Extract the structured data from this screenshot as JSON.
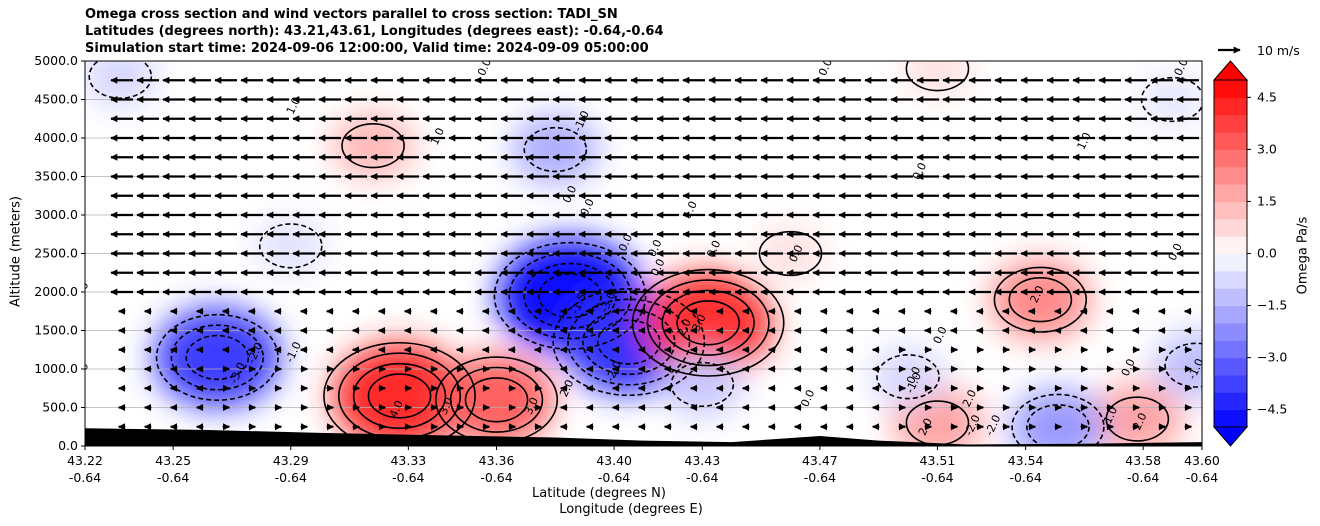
{
  "title_lines": [
    "Omega cross section and wind vectors parallel to cross section: TADI_SN",
    "Latitudes (degrees north): 43.21,43.61, Longitudes (degrees east): -0.64,-0.64",
    "Simulation start time: 2024-09-06 12:00:00, Valid time: 2024-09-09 05:00:00"
  ],
  "chart_data": {
    "type": "heatmap",
    "title": "Omega cross section and wind vectors parallel to cross section: TADI_SN",
    "ylabel": "Altitude (meters)",
    "xlabel_lines": [
      "Latitude (degrees N)",
      "Longitude (degrees E)"
    ],
    "ylim": [
      0,
      5000
    ],
    "y_ticks": [
      0,
      500,
      1000,
      1500,
      2000,
      2500,
      3000,
      3500,
      4000,
      4500,
      5000
    ],
    "y_tick_labels": [
      "0.0",
      "500.0",
      "1000.0",
      "1500.0",
      "2000.0",
      "2500.0",
      "3000.0",
      "3500.0",
      "4000.0",
      "4500.0",
      "5000.0"
    ],
    "x_ticks": [
      {
        "lat": "43.22",
        "lon": "-0.64"
      },
      {
        "lat": "43.25",
        "lon": "-0.64"
      },
      {
        "lat": "43.29",
        "lon": "-0.64"
      },
      {
        "lat": "43.33",
        "lon": "-0.64"
      },
      {
        "lat": "43.36",
        "lon": "-0.64"
      },
      {
        "lat": "43.40",
        "lon": "-0.64"
      },
      {
        "lat": "43.43",
        "lon": "-0.64"
      },
      {
        "lat": "43.47",
        "lon": "-0.64"
      },
      {
        "lat": "43.51",
        "lon": "-0.64"
      },
      {
        "lat": "43.54",
        "lon": "-0.64"
      },
      {
        "lat": "43.58",
        "lon": "-0.64"
      },
      {
        "lat": "43.60",
        "lon": "-0.64"
      }
    ],
    "x_range": [
      43.22,
      43.6
    ],
    "grid": "horizontal",
    "colormap": "bwr",
    "colorbar": {
      "label": "Omega Pa/s",
      "range": [
        -5,
        5
      ],
      "extend": "both",
      "ticks": [
        4.5,
        3.0,
        1.5,
        0.0,
        -1.5,
        -3.0,
        -4.5
      ],
      "tick_labels": [
        "4.5",
        "3.0",
        "1.5",
        "0.0",
        "−1.5",
        "−3.0",
        "−4.5"
      ]
    },
    "omega_blobs": [
      {
        "lat": 43.265,
        "alt": 1150,
        "value": -3.8
      },
      {
        "lat": 43.327,
        "alt": 650,
        "value": 4.2
      },
      {
        "lat": 43.36,
        "alt": 600,
        "value": 3.1
      },
      {
        "lat": 43.385,
        "alt": 1950,
        "value": -4.8
      },
      {
        "lat": 43.405,
        "alt": 1350,
        "value": -4.0
      },
      {
        "lat": 43.432,
        "alt": 1600,
        "value": 4.0
      },
      {
        "lat": 43.318,
        "alt": 3900,
        "value": 1.4
      },
      {
        "lat": 43.38,
        "alt": 3850,
        "value": -1.6
      },
      {
        "lat": 43.232,
        "alt": 4800,
        "value": -0.8
      },
      {
        "lat": 43.545,
        "alt": 1900,
        "value": 2.3
      },
      {
        "lat": 43.578,
        "alt": 350,
        "value": 1.8
      },
      {
        "lat": 43.51,
        "alt": 300,
        "value": 1.8
      },
      {
        "lat": 43.551,
        "alt": 250,
        "value": -2.0
      },
      {
        "lat": 43.43,
        "alt": 800,
        "value": -1.1
      },
      {
        "lat": 43.5,
        "alt": 900,
        "value": -0.8
      },
      {
        "lat": 43.598,
        "alt": 1050,
        "value": -1.3
      },
      {
        "lat": 43.46,
        "alt": 2500,
        "value": 0.6
      },
      {
        "lat": 43.51,
        "alt": 4900,
        "value": 0.6
      },
      {
        "lat": 43.29,
        "alt": 2600,
        "value": -0.6
      },
      {
        "lat": 43.59,
        "alt": 4500,
        "value": -0.5
      }
    ],
    "contour_labels": [
      {
        "text": "0.0",
        "lat": 43.22,
        "alt": 2000
      },
      {
        "text": "0.0",
        "lat": 43.22,
        "alt": 950
      },
      {
        "text": "-3.0",
        "lat": 43.273,
        "alt": 930
      },
      {
        "text": "-2.0",
        "lat": 43.279,
        "alt": 1190
      },
      {
        "text": "-1.0",
        "lat": 43.292,
        "alt": 1200
      },
      {
        "text": "4.0",
        "lat": 43.327,
        "alt": 460
      },
      {
        "text": "3.0",
        "lat": 43.344,
        "alt": 500
      },
      {
        "text": "3.0",
        "lat": 43.373,
        "alt": 500
      },
      {
        "text": "2.0",
        "lat": 43.385,
        "alt": 730
      },
      {
        "text": "1.0",
        "lat": 43.292,
        "alt": 4400
      },
      {
        "text": "1.0",
        "lat": 43.341,
        "alt": 4000
      },
      {
        "text": "0.0",
        "lat": 43.357,
        "alt": 4900
      },
      {
        "text": "-1.0",
        "lat": 43.39,
        "alt": 4200
      },
      {
        "text": "0.0",
        "lat": 43.386,
        "alt": 3250
      },
      {
        "text": "0.0",
        "lat": 43.392,
        "alt": 3080
      },
      {
        "text": "-1.5",
        "lat": 43.389,
        "alt": 1830
      },
      {
        "text": "-3.0",
        "lat": 43.399,
        "alt": 1850
      },
      {
        "text": "-2.0",
        "lat": 43.401,
        "alt": 950
      },
      {
        "text": "0.0",
        "lat": 43.405,
        "alt": 2620
      },
      {
        "text": "0.0",
        "lat": 43.415,
        "alt": 2550
      },
      {
        "text": "0.0",
        "lat": 43.416,
        "alt": 2300
      },
      {
        "text": "1.0",
        "lat": 43.427,
        "alt": 3050
      },
      {
        "text": "0.0",
        "lat": 43.435,
        "alt": 2540
      },
      {
        "text": "3.0",
        "lat": 43.43,
        "alt": 1580
      },
      {
        "text": "2.0",
        "lat": 43.425,
        "alt": 1520
      },
      {
        "text": "0.0",
        "lat": 43.463,
        "alt": 2480
      },
      {
        "text": "0.0",
        "lat": 43.467,
        "alt": 600
      },
      {
        "text": "0.0",
        "lat": 43.505,
        "alt": 3550
      },
      {
        "text": "0.0",
        "lat": 43.512,
        "alt": 1420
      },
      {
        "text": "0.0",
        "lat": 43.503,
        "alt": 900
      },
      {
        "text": "-1.0",
        "lat": 43.503,
        "alt": 800
      },
      {
        "text": "2.0",
        "lat": 43.522,
        "alt": 600
      },
      {
        "text": "2.0",
        "lat": 43.507,
        "alt": 230
      },
      {
        "text": "-2.0",
        "lat": 43.523,
        "alt": 250
      },
      {
        "text": "-2.0",
        "lat": 43.53,
        "alt": 250
      },
      {
        "text": "2.0",
        "lat": 43.545,
        "alt": 1950
      },
      {
        "text": "0.0",
        "lat": 43.592,
        "alt": 2500
      },
      {
        "text": "1.0",
        "lat": 43.561,
        "alt": 3940
      },
      {
        "text": "0.0",
        "lat": 43.576,
        "alt": 1000
      },
      {
        "text": "1.0",
        "lat": 43.57,
        "alt": 380
      },
      {
        "text": "-1.0",
        "lat": 43.599,
        "alt": 980
      },
      {
        "text": "2.0",
        "lat": 43.58,
        "alt": 300
      },
      {
        "text": "0.0",
        "lat": 43.594,
        "alt": 4900
      },
      {
        "text": "0.0",
        "lat": 43.473,
        "alt": 4900
      }
    ],
    "vector_key": {
      "label": "10 m/s",
      "speed": 10
    },
    "wind": {
      "levels": [
        4750,
        4500,
        4250,
        4000,
        3750,
        3500,
        3250,
        3000,
        2750,
        2500,
        2250,
        2000,
        1750,
        1500,
        1250,
        1000,
        750,
        500,
        250
      ],
      "upper_speed": 10,
      "lower_speed": 3,
      "direction_aloft": "north-to-south (leftward)"
    },
    "terrain": {
      "label": "terrain",
      "color": "#000000"
    }
  }
}
